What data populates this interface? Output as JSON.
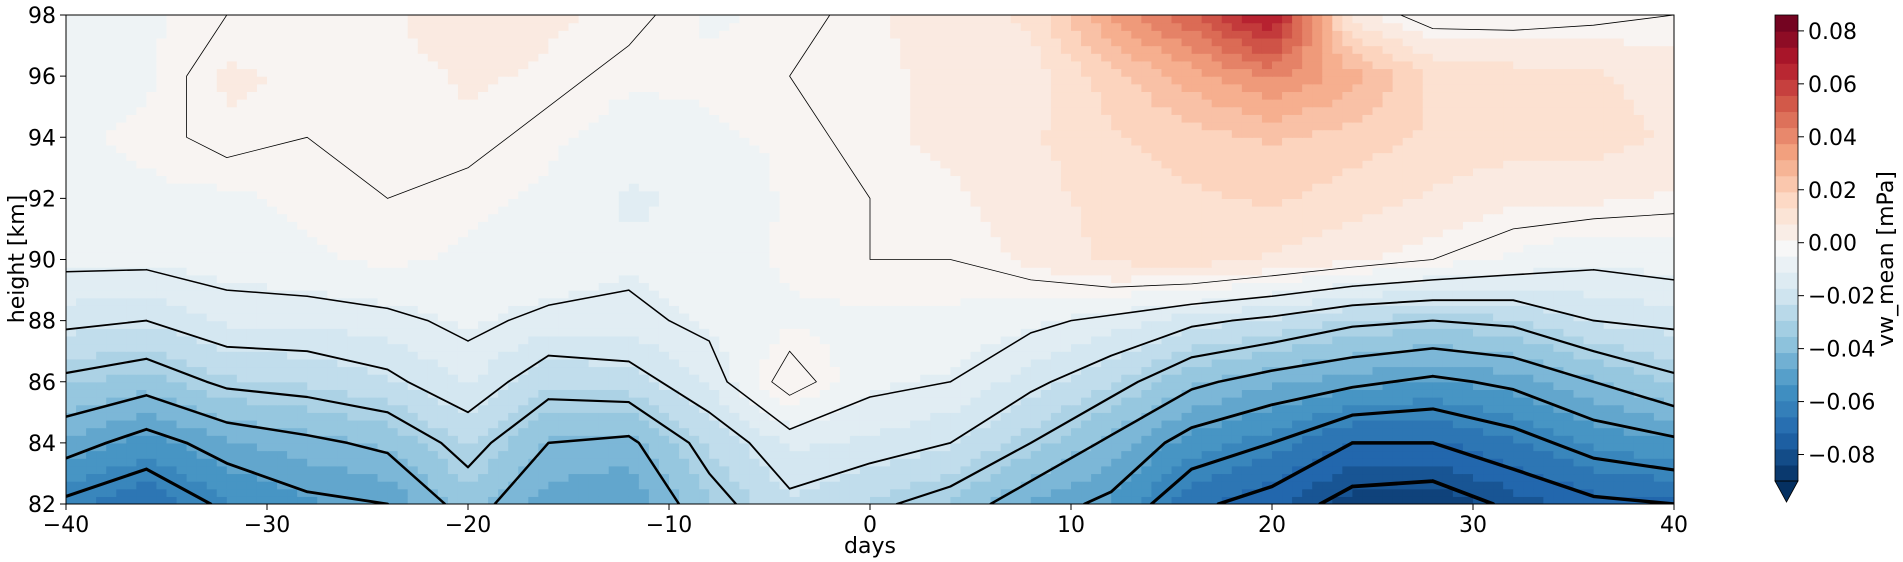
{
  "chart_data": {
    "type": "heatmap",
    "xlabel": "days",
    "ylabel": "height [km]",
    "xlim": [
      -40,
      40
    ],
    "ylim": [
      82,
      98
    ],
    "x_ticks": [
      -40,
      -30,
      -20,
      -10,
      0,
      10,
      20,
      30,
      40
    ],
    "y_ticks": [
      82,
      84,
      86,
      88,
      90,
      92,
      94,
      96,
      98
    ],
    "colorbar": {
      "label": "vw_mean [mPa]",
      "range": [
        -0.09,
        0.086
      ],
      "ticks": [
        -0.08,
        -0.06,
        -0.04,
        -0.02,
        0.0,
        0.02,
        0.04,
        0.06,
        0.08
      ],
      "tick_labels": [
        "−0.08",
        "−0.06",
        "−0.04",
        "−0.02",
        "0.00",
        "0.02",
        "0.04",
        "0.06",
        "0.08"
      ],
      "colormap": "RdBu_r",
      "extend": "min"
    },
    "field": {
      "x": [
        -40,
        -36,
        -32,
        -28,
        -24,
        -20,
        -16,
        -12,
        -8,
        -4,
        0,
        4,
        8,
        12,
        16,
        20,
        24,
        28,
        32,
        36,
        40
      ],
      "y": [
        82,
        84,
        86,
        88,
        90,
        92,
        94,
        96,
        98
      ],
      "z": [
        [
          -0.062,
          -0.068,
          -0.058,
          -0.052,
          -0.05,
          -0.036,
          -0.048,
          -0.05,
          -0.034,
          -0.022,
          -0.028,
          -0.034,
          -0.046,
          -0.052,
          -0.068,
          -0.074,
          -0.084,
          -0.086,
          -0.078,
          -0.072,
          -0.07
        ],
        [
          -0.046,
          -0.054,
          -0.046,
          -0.042,
          -0.038,
          -0.026,
          -0.04,
          -0.042,
          -0.026,
          -0.014,
          -0.016,
          -0.02,
          -0.03,
          -0.042,
          -0.054,
          -0.06,
          -0.07,
          -0.07,
          -0.064,
          -0.056,
          -0.052
        ],
        [
          -0.032,
          -0.036,
          -0.028,
          -0.026,
          -0.022,
          -0.014,
          -0.026,
          -0.024,
          -0.014,
          0.004,
          -0.008,
          -0.01,
          -0.018,
          -0.026,
          -0.038,
          -0.044,
          -0.048,
          -0.052,
          -0.048,
          -0.04,
          -0.032
        ],
        [
          -0.018,
          -0.02,
          -0.014,
          -0.014,
          -0.012,
          -0.008,
          -0.012,
          -0.012,
          -0.008,
          -0.004,
          -0.004,
          -0.004,
          -0.008,
          -0.012,
          -0.018,
          -0.022,
          -0.028,
          -0.03,
          -0.028,
          -0.02,
          -0.018
        ],
        [
          -0.008,
          -0.008,
          -0.006,
          -0.004,
          -0.002,
          -0.004,
          -0.004,
          -0.008,
          -0.006,
          -0.002,
          0.0,
          0.0,
          0.004,
          0.01,
          0.012,
          0.008,
          0.004,
          0.0,
          -0.004,
          -0.008,
          -0.006
        ],
        [
          -0.004,
          -0.004,
          -0.004,
          -0.002,
          0.0,
          -0.002,
          -0.004,
          -0.01,
          -0.008,
          -0.002,
          0.0,
          0.002,
          0.006,
          0.012,
          0.014,
          0.016,
          0.012,
          0.008,
          0.004,
          0.004,
          0.002
        ],
        [
          -0.004,
          -0.002,
          0.002,
          0.0,
          0.0,
          0.002,
          -0.002,
          -0.006,
          -0.004,
          -0.002,
          0.002,
          0.004,
          0.008,
          0.014,
          0.018,
          0.022,
          0.018,
          0.014,
          0.012,
          0.012,
          0.008
        ],
        [
          -0.004,
          -0.004,
          0.004,
          0.002,
          0.0,
          0.004,
          0.002,
          -0.002,
          -0.002,
          0.0,
          0.002,
          0.004,
          0.006,
          0.018,
          0.03,
          0.04,
          0.03,
          0.014,
          0.012,
          0.01,
          0.006
        ],
        [
          -0.004,
          -0.004,
          0.0,
          0.0,
          0.002,
          0.008,
          0.004,
          0.002,
          -0.004,
          -0.002,
          0.002,
          0.006,
          0.01,
          0.034,
          0.05,
          0.072,
          0.006,
          -0.004,
          -0.004,
          -0.002,
          0.0
        ]
      ]
    },
    "contour_levels": [
      -0.08,
      -0.07,
      -0.06,
      -0.05,
      -0.04,
      -0.03,
      -0.02,
      -0.01,
      0.0
    ]
  }
}
